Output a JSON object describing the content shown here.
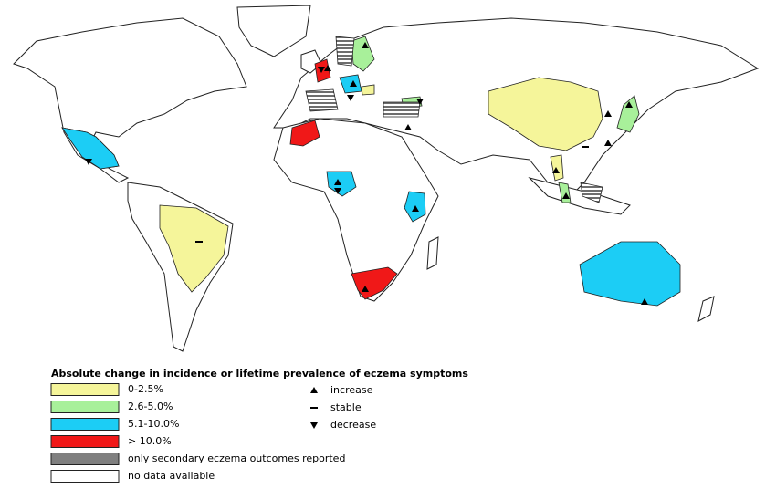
{
  "legend": {
    "title": "Absolute change in incidence or lifetime prevalence of eczema symptoms",
    "color_items": [
      {
        "label": "0-2.5%",
        "color": "#f5f59a"
      },
      {
        "label": "2.6-5.0%",
        "color": "#a8f09a"
      },
      {
        "label": "5.1-10.0%",
        "color": "#1ccdf5"
      },
      {
        "label": "> 10.0%",
        "color": "#f01818"
      },
      {
        "label": "only secondary eczema outcomes reported",
        "color": "#808080"
      },
      {
        "label": "no data available",
        "color": "#ffffff"
      }
    ],
    "symbol_items": [
      {
        "label": "increase"
      },
      {
        "label": "stable"
      },
      {
        "label": "decrease"
      }
    ]
  }
}
